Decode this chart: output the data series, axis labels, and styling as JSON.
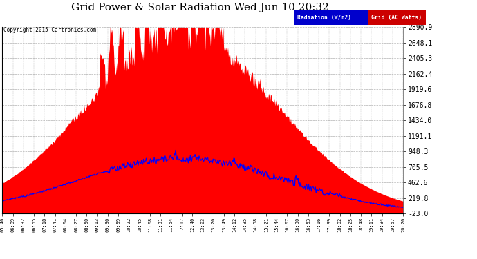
{
  "title": "Grid Power & Solar Radiation Wed Jun 10 20:32",
  "copyright": "Copyright 2015 Cartronics.com",
  "legend_radiation": "Radiation (W/m2)",
  "legend_grid": "Grid (AC Watts)",
  "y_ticks": [
    -23.0,
    219.8,
    462.6,
    705.5,
    948.3,
    1191.1,
    1434.0,
    1676.8,
    1919.6,
    2162.4,
    2405.3,
    2648.1,
    2890.9
  ],
  "y_min": -23.0,
  "y_max": 2890.9,
  "background_color": "#ffffff",
  "red_fill_color": "#ff0000",
  "blue_line_color": "#0000ff",
  "grid_line_color": "#999999",
  "title_fontsize": 11,
  "x_tick_labels": [
    "05:46",
    "06:09",
    "06:32",
    "06:55",
    "07:18",
    "07:41",
    "08:04",
    "08:27",
    "08:50",
    "09:13",
    "09:36",
    "09:59",
    "10:22",
    "10:45",
    "11:08",
    "11:31",
    "11:54",
    "12:17",
    "12:40",
    "13:03",
    "13:26",
    "13:49",
    "14:12",
    "14:35",
    "14:58",
    "15:21",
    "15:44",
    "16:07",
    "16:30",
    "16:53",
    "17:16",
    "17:39",
    "18:02",
    "18:25",
    "18:48",
    "19:11",
    "19:34",
    "19:57",
    "20:20"
  ]
}
